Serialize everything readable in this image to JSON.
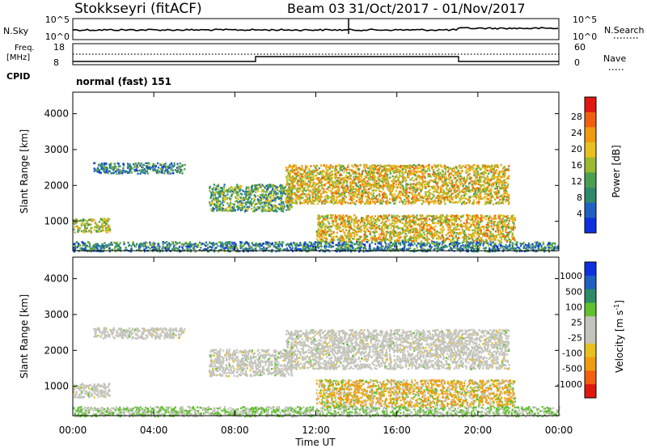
{
  "header": {
    "station": "Stokkseyri (fitACF)",
    "beam": "Beam 03",
    "date_range": "31/Oct/2017 - 01/Nov/2017"
  },
  "strip_nsky": {
    "label": "N.Sky",
    "left_ticks": [
      "10^5",
      "10^0"
    ],
    "right_ticks": [
      "10^5",
      "10^0"
    ],
    "right_label": "N.Search"
  },
  "strip_freq": {
    "label_line1": "Freq.",
    "label_line2": "[MHz]",
    "left_ticks": [
      "18",
      "8"
    ],
    "right_ticks": [
      "60",
      "0"
    ],
    "right_label": "Nave",
    "cpid_label": "CPID"
  },
  "cpid_text": "normal (fast) 151",
  "panels": {
    "power": {
      "ylabel": "Slant Range [km]",
      "yticks": [
        "4000",
        "3000",
        "2000",
        "1000"
      ],
      "colorbar_label": "Power [dB]",
      "colorbar_ticks": [
        "28",
        "24",
        "20",
        "16",
        "12",
        "8",
        "4"
      ]
    },
    "velocity": {
      "ylabel": "Slant Range [km]",
      "yticks": [
        "4000",
        "3000",
        "2000",
        "1000"
      ],
      "colorbar_label": "Velocity [m s",
      "colorbar_label_sup": "-1",
      "colorbar_label_end": "]",
      "colorbar_ticks": [
        "1000",
        "500",
        "100",
        "25",
        "-25",
        "-100",
        "-500",
        "-1000"
      ]
    }
  },
  "xaxis": {
    "ticks": [
      "00:00",
      "04:00",
      "08:00",
      "12:00",
      "16:00",
      "20:00",
      "00:00"
    ],
    "label": "Time UT"
  },
  "colors": {
    "power_scale": [
      "#1030e0",
      "#2060c0",
      "#2f8a6a",
      "#4aa050",
      "#9ab830",
      "#e8c020",
      "#f09a10",
      "#f06010",
      "#e01810"
    ],
    "velocity_scale": [
      "#e01810",
      "#f06010",
      "#f09a10",
      "#e8c020",
      "#c4c4bc",
      "#c4c4bc",
      "#60c030",
      "#2f8a6a",
      "#2060c0",
      "#1030e0"
    ]
  },
  "chart_data": [
    {
      "type": "heatmap",
      "name": "power",
      "x_range_hours": [
        0,
        24
      ],
      "ylim_km": [
        180,
        4600
      ],
      "value_range_db": [
        0,
        30
      ],
      "echo_regions": [
        {
          "t0": 0.0,
          "t1": 1.8,
          "r0": 700,
          "r1": 1100,
          "power_db": 16
        },
        {
          "t0": 1.0,
          "t1": 5.5,
          "r0": 2350,
          "r1": 2650,
          "power_db": 6
        },
        {
          "t0": 6.7,
          "t1": 10.8,
          "r0": 1300,
          "r1": 2050,
          "power_db": 10
        },
        {
          "t0": 10.5,
          "t1": 21.5,
          "r0": 1500,
          "r1": 2600,
          "power_db": 20
        },
        {
          "t0": 12.0,
          "t1": 21.8,
          "r0": 450,
          "r1": 1200,
          "power_db": 18
        },
        {
          "t0": 0.0,
          "t1": 24.0,
          "r0": 180,
          "r1": 450,
          "power_db": 8
        }
      ]
    },
    {
      "type": "heatmap",
      "name": "velocity",
      "x_range_hours": [
        0,
        24
      ],
      "ylim_km": [
        180,
        4600
      ],
      "value_range_ms": [
        -1000,
        1000
      ],
      "echo_regions": [
        {
          "t0": 0.0,
          "t1": 1.8,
          "r0": 700,
          "r1": 1100,
          "velocity_ms": 0
        },
        {
          "t0": 1.0,
          "t1": 5.5,
          "r0": 2350,
          "r1": 2650,
          "velocity_ms": 0
        },
        {
          "t0": 6.7,
          "t1": 10.8,
          "r0": 1300,
          "r1": 2050,
          "velocity_ms": 0
        },
        {
          "t0": 10.5,
          "t1": 21.5,
          "r0": 1500,
          "r1": 2600,
          "velocity_ms": 0
        },
        {
          "t0": 12.0,
          "t1": 21.8,
          "r0": 450,
          "r1": 1200,
          "velocity_ms": -150
        },
        {
          "t0": 0.0,
          "t1": 24.0,
          "r0": 180,
          "r1": 450,
          "velocity_ms": 50
        }
      ]
    }
  ]
}
